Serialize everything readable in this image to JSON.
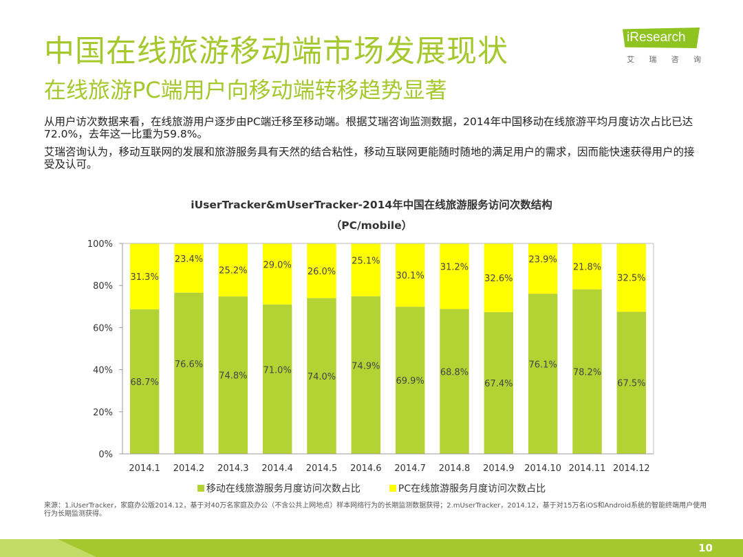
{
  "header": {
    "title": "中国在线旅游移动端市场发展现状",
    "subtitle": "在线旅游PC端用户向移动端转移趋势显著"
  },
  "logo": {
    "brand": "iResearch",
    "cn_chars": [
      "艾",
      "瑞",
      "咨",
      "询"
    ],
    "color": "#8fc31f"
  },
  "body": {
    "paragraph1": "从用户访次数据来看，在线旅游用户逐步由PC端迁移至移动端。根据艾瑞咨询监测数据，2014年中国移动在线旅游平均月度访次占比已达72.0%，去年这一比重为59.8%。",
    "paragraph2": "艾瑞咨询认为，移动互联网的发展和旅游服务具有天然的结合粘性，移动互联网更能随时随地的满足用户的需求，因而能快速获得用户的接受及认可。"
  },
  "chart_data": {
    "type": "bar",
    "stacked": true,
    "title": "iUserTracker&mUserTracker-2014年中国在线旅游服务访问次数结构",
    "subtitle": "（PC/mobile）",
    "categories": [
      "2014.1",
      "2014.2",
      "2014.3",
      "2014.4",
      "2014.5",
      "2014.6",
      "2014.7",
      "2014.8",
      "2014.9",
      "2014.10",
      "2014.11",
      "2014.12"
    ],
    "series": [
      {
        "name": "移动在线旅游服务月度访问次数占比",
        "color": "#b3d234",
        "values": [
          68.7,
          76.6,
          74.8,
          71.0,
          74.0,
          74.9,
          69.9,
          68.8,
          67.4,
          76.1,
          78.2,
          67.5
        ],
        "labels": [
          "68.7%",
          "76.6%",
          "74.8%",
          "71.0%",
          "74.0%",
          "74.9%",
          "69.9%",
          "68.8%",
          "67.4%",
          "76.1%",
          "78.2%",
          "67.5%"
        ]
      },
      {
        "name": "PC在线旅游服务月度访问次数占比",
        "color": "#ffff00",
        "values": [
          31.3,
          23.4,
          25.2,
          29.0,
          26.0,
          25.1,
          30.1,
          31.2,
          32.6,
          23.9,
          21.8,
          32.5
        ],
        "labels": [
          "31.3%",
          "23.4%",
          "25.2%",
          "29.0%",
          "26.0%",
          "25.1%",
          "30.1%",
          "31.2%",
          "32.6%",
          "23.9%",
          "21.8%",
          "32.5%"
        ]
      }
    ],
    "y_ticks": [
      "0%",
      "20%",
      "40%",
      "60%",
      "80%",
      "100%"
    ],
    "ylim": [
      0,
      100
    ],
    "grid": false,
    "legend_position": "bottom"
  },
  "source": "来源：1.iUserTracker，家庭办公版2014.12，基于对40万名家庭及办公（不含公共上网地点）样本网络行为的长期监测数据获得；2.mUserTracker，2014.12，基于对15万名iOS和Android系统的智能终端用户使用行为长期监测获得。",
  "page_number": "10",
  "colors": {
    "accent": "#a5c82f"
  }
}
